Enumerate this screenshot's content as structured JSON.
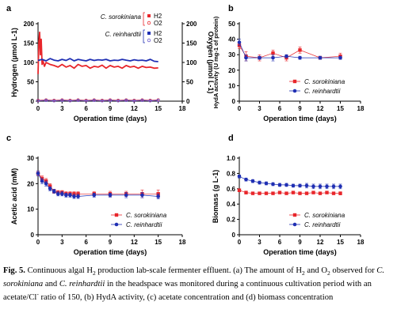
{
  "figure": {
    "caption": {
      "label": "Fig. 5.",
      "segments": [
        {
          "t": " Continuous algal H",
          "s": ""
        },
        {
          "t": "2",
          "s": "sub"
        },
        {
          "t": " production lab-scale fermenter effluent. (a) The amount of H",
          "s": ""
        },
        {
          "t": "2",
          "s": "sub"
        },
        {
          "t": " and O",
          "s": ""
        },
        {
          "t": "2",
          "s": "sub"
        },
        {
          "t": " observed for ",
          "s": ""
        },
        {
          "t": "C. sorokiniana",
          "s": "i"
        },
        {
          "t": " and ",
          "s": ""
        },
        {
          "t": "C. reinhardtii",
          "s": "i"
        },
        {
          "t": " in the headspace was monitored during a continuous cultivation period with an acetate/Cl",
          "s": ""
        },
        {
          "t": "-",
          "s": "sup"
        },
        {
          "t": " ratio of 150, (b) HydA activity, (c) acetate concentration and (d) biomass concentration",
          "s": ""
        }
      ]
    }
  },
  "chart_data": [
    {
      "panel": "a",
      "type": "line",
      "xlabel": "Operation time (days)",
      "ylabel": "Hydrogen (µmol L-1)",
      "y2label": "Oxygen (µmol L-1)",
      "xlim": [
        0,
        18
      ],
      "ylim": [
        0,
        200
      ],
      "y2lim": [
        0,
        200
      ],
      "xticks": [
        0,
        3,
        6,
        9,
        12,
        15,
        18
      ],
      "yticks": [
        0,
        50,
        100,
        150,
        200
      ],
      "legend": "top-right",
      "series": [
        {
          "name": "C. sorokiniana",
          "gas": "H2",
          "color": "#e8262b",
          "x": [
            0,
            0.1,
            0.2,
            0.3,
            0.4,
            0.5,
            0.6,
            0.8,
            1,
            1.5,
            2,
            2.5,
            3,
            3.5,
            4,
            4.5,
            5,
            5.5,
            6,
            6.5,
            7,
            7.5,
            8,
            8.5,
            9,
            9.5,
            10,
            10.5,
            11,
            11.5,
            12,
            12.5,
            13,
            13.5,
            14,
            14.5,
            15
          ],
          "y": [
            70,
            150,
            178,
            120,
            160,
            95,
            105,
            90,
            100,
            95,
            92,
            88,
            95,
            88,
            92,
            85,
            95,
            90,
            92,
            85,
            90,
            88,
            93,
            85,
            92,
            88,
            90,
            85,
            92,
            88,
            90,
            85,
            90,
            87,
            88,
            85,
            86
          ]
        },
        {
          "name": "C. sorokiniana",
          "gas": "O2",
          "color": "#e8262b",
          "x": [
            0,
            1,
            2,
            3,
            4,
            5,
            6,
            7,
            8,
            9,
            10,
            11,
            12,
            13,
            14,
            15
          ],
          "y": [
            2,
            3,
            2,
            3,
            2,
            3,
            2,
            3,
            2,
            3,
            2,
            3,
            2,
            3,
            2,
            3
          ]
        },
        {
          "name": "C. reinhardtii",
          "gas": "H2",
          "color": "#1f2fb3",
          "x": [
            0,
            0.5,
            1,
            1.5,
            2,
            2.5,
            3,
            3.5,
            4,
            4.5,
            5,
            5.5,
            6,
            6.5,
            7,
            7.5,
            8,
            8.5,
            9,
            9.5,
            10,
            10.5,
            11,
            11.5,
            12,
            12.5,
            13,
            13.5,
            14,
            14.5,
            15
          ],
          "y": [
            105,
            108,
            104,
            110,
            106,
            104,
            108,
            105,
            110,
            104,
            108,
            106,
            104,
            108,
            105,
            107,
            106,
            108,
            104,
            106,
            105,
            108,
            106,
            104,
            107,
            105,
            106,
            104,
            108,
            103,
            102
          ]
        },
        {
          "name": "C. reinhardtii",
          "gas": "O2",
          "color": "#6a5acd",
          "x": [
            0,
            1,
            2,
            3,
            4,
            5,
            6,
            7,
            8,
            9,
            10,
            11,
            12,
            13,
            14,
            15
          ],
          "y": [
            1,
            2,
            1,
            2,
            1,
            2,
            1,
            2,
            1,
            2,
            1,
            2,
            1,
            2,
            1,
            2
          ]
        }
      ]
    },
    {
      "panel": "b",
      "type": "scatter",
      "xlabel": "Operation time (days)",
      "ylabel": "HydA activity (U mg-1 of protein)",
      "xlim": [
        0,
        18
      ],
      "ylim": [
        0,
        50
      ],
      "xticks": [
        0,
        3,
        6,
        9,
        12,
        15,
        18
      ],
      "yticks": [
        0,
        10,
        20,
        30,
        40,
        50
      ],
      "legend": "bottom-right",
      "series": [
        {
          "name": "C. sorokiniana",
          "color": "#e8262b",
          "marker": "square",
          "x": [
            0,
            1,
            3,
            5,
            7,
            9,
            12,
            15
          ],
          "y": [
            36,
            29,
            28,
            31,
            28,
            33,
            28,
            29
          ],
          "err": [
            2,
            3,
            2,
            2,
            2,
            2,
            1,
            2
          ]
        },
        {
          "name": "C. reinhardtii",
          "color": "#1f2fb3",
          "marker": "circle",
          "x": [
            0,
            1,
            3,
            5,
            7,
            9,
            12,
            15
          ],
          "y": [
            38,
            28,
            28,
            28,
            29,
            28,
            28,
            28
          ],
          "err": [
            2,
            2,
            1,
            2,
            1,
            1,
            1,
            1
          ]
        }
      ]
    },
    {
      "panel": "c",
      "type": "scatter",
      "xlabel": "Operation time (days)",
      "ylabel": "Acetic acid (mM)",
      "xlim": [
        0,
        18
      ],
      "ylim": [
        0,
        30
      ],
      "xticks": [
        0,
        3,
        6,
        9,
        12,
        15,
        18
      ],
      "yticks": [
        0,
        10,
        20,
        30
      ],
      "legend": "bottom-right",
      "series": [
        {
          "name": "C. sorokiniana",
          "color": "#e8262b",
          "marker": "square",
          "x": [
            0,
            0.5,
            1,
            1.5,
            2,
            2.5,
            3,
            3.5,
            4,
            4.5,
            5,
            7,
            9,
            11,
            13,
            15
          ],
          "y": [
            24,
            22,
            21,
            19,
            17,
            16.5,
            16.5,
            16,
            16,
            16,
            16,
            16,
            16,
            16,
            16,
            16
          ],
          "err": [
            1,
            1,
            1,
            1,
            0.8,
            0.8,
            0.8,
            0.8,
            0.8,
            0.8,
            0.8,
            0.8,
            1,
            1,
            1.5,
            1.5
          ]
        },
        {
          "name": "C. reinhardtii",
          "color": "#1f2fb3",
          "marker": "circle",
          "x": [
            0,
            0.5,
            1,
            1.5,
            2,
            2.5,
            3,
            3.5,
            4,
            4.5,
            5,
            7,
            9,
            11,
            13,
            15
          ],
          "y": [
            24,
            21,
            20,
            18,
            17,
            16,
            16,
            15.5,
            15.5,
            15,
            15,
            15.5,
            15.5,
            15.5,
            15.5,
            15
          ],
          "err": [
            1,
            1,
            1,
            0.8,
            0.8,
            0.8,
            0.8,
            0.8,
            0.8,
            0.8,
            0.8,
            0.8,
            0.8,
            1,
            1,
            1
          ]
        }
      ]
    },
    {
      "panel": "d",
      "type": "scatter",
      "xlabel": "Operation time (days)",
      "ylabel": "Biomass (g L-1)",
      "xlim": [
        0,
        18
      ],
      "ylim": [
        0,
        1.0
      ],
      "xticks": [
        0,
        3,
        6,
        9,
        12,
        15,
        18
      ],
      "yticks": [
        0,
        0.2,
        0.4,
        0.6,
        0.8,
        1.0
      ],
      "ytick_labels": [
        "0",
        "0.2",
        "0.4",
        "0.6",
        "0.8",
        "1.0"
      ],
      "legend": "bottom-right",
      "series": [
        {
          "name": "C. sorokiniana",
          "color": "#e8262b",
          "marker": "square",
          "x": [
            0,
            1,
            2,
            3,
            4,
            5,
            6,
            7,
            8,
            9,
            10,
            11,
            12,
            13,
            14,
            15
          ],
          "y": [
            0.58,
            0.55,
            0.54,
            0.54,
            0.54,
            0.54,
            0.55,
            0.54,
            0.55,
            0.54,
            0.54,
            0.55,
            0.54,
            0.55,
            0.54,
            0.54
          ],
          "err": [
            0.02,
            0.02,
            0.01,
            0.01,
            0.01,
            0.01,
            0.01,
            0.01,
            0.01,
            0.01,
            0.01,
            0.01,
            0.01,
            0.01,
            0.01,
            0.02
          ]
        },
        {
          "name": "C. reinhardtii",
          "color": "#1f2fb3",
          "marker": "circle",
          "x": [
            0,
            1,
            2,
            3,
            4,
            5,
            6,
            7,
            8,
            9,
            10,
            11,
            12,
            13,
            14,
            15
          ],
          "y": [
            0.76,
            0.72,
            0.7,
            0.68,
            0.67,
            0.66,
            0.65,
            0.65,
            0.64,
            0.64,
            0.64,
            0.63,
            0.63,
            0.63,
            0.63,
            0.63
          ],
          "err": [
            0.02,
            0.02,
            0.02,
            0.02,
            0.02,
            0.02,
            0.02,
            0.02,
            0.02,
            0.02,
            0.03,
            0.03,
            0.03,
            0.03,
            0.03,
            0.03
          ]
        }
      ]
    }
  ]
}
